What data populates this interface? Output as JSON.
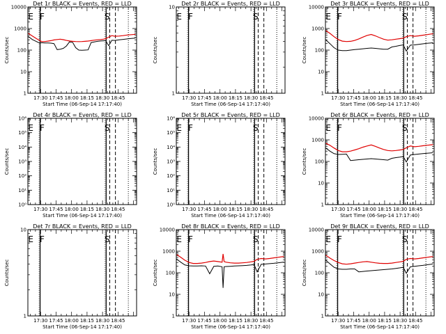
{
  "chart_data": {
    "type": "line",
    "x_ticks": [
      "17:30",
      "17:45",
      "18:00",
      "18:15",
      "18:30",
      "18:45"
    ],
    "x_tick_minutes": [
      30,
      45,
      60,
      75,
      90,
      105
    ],
    "x_range_minutes": [
      17.67,
      123.0
    ],
    "xlabel": "Start Time (06-Sep-14 17:17:40)",
    "ylabel": "Counts/sec",
    "yscale": "log",
    "series_names": [
      "Events",
      "LLD"
    ],
    "series_colors": {
      "events": "#000000",
      "lld": "#e00000"
    },
    "panels": [
      {
        "title": "Det 1r BLACK = Events, RED = LLD",
        "ylim": [
          1,
          10000
        ],
        "y_ticks": [
          "10000",
          "1000",
          "100",
          "10",
          "1"
        ],
        "y_tick_values": [
          10000,
          1000,
          100,
          10,
          1
        ],
        "solid_lines": [
          29.5,
          93.5
        ],
        "dashed_lines": [
          97.0,
          102.5
        ],
        "dotted_lines": [
          115.0
        ],
        "labels": [
          {
            "text": "E",
            "x": 20.5
          },
          {
            "text": "F",
            "x": 31.5
          },
          {
            "text": "S",
            "x": 94.5
          }
        ],
        "x": [
          18,
          22,
          26,
          29,
          31,
          34,
          37,
          40,
          43,
          46,
          49,
          52,
          55,
          58,
          61,
          64,
          67,
          70,
          73,
          76,
          79,
          82,
          85,
          88,
          91,
          93,
          96,
          99,
          102,
          106,
          110,
          114,
          118,
          122
        ],
        "lld": [
          600,
          450,
          340,
          280,
          250,
          250,
          260,
          275,
          295,
          310,
          320,
          305,
          280,
          265,
          255,
          250,
          248,
          250,
          255,
          262,
          275,
          290,
          300,
          310,
          320,
          340,
          400,
          470,
          440,
          450,
          470,
          500,
          520,
          540
        ],
        "events": [
          430,
          310,
          250,
          210,
          220,
          215,
          215,
          210,
          200,
          105,
          110,
          120,
          155,
          240,
          230,
          130,
          100,
          98,
          100,
          102,
          225,
          240,
          255,
          265,
          270,
          275,
          160,
          285,
          280,
          300,
          315,
          330,
          345,
          360
        ]
      },
      {
        "title": "Det 2r BLACK = Events, RED = LLD",
        "ylim": [
          1,
          10
        ],
        "y_ticks": [
          "10",
          "1"
        ],
        "y_tick_values": [
          10,
          1
        ],
        "solid_lines": [
          29.5,
          93.5
        ],
        "dashed_lines": [
          97.0,
          102.5
        ],
        "dotted_lines": [
          115.0
        ],
        "labels": [
          {
            "text": "E",
            "x": 20.5
          },
          {
            "text": "F",
            "x": 31.5
          },
          {
            "text": "S",
            "x": 94.5
          }
        ],
        "x": [],
        "lld": [],
        "events": []
      },
      {
        "title": "Det 3r BLACK = Events, RED = LLD",
        "ylim": [
          1,
          10000
        ],
        "y_ticks": [
          "10000",
          "1000",
          "100",
          "10",
          "1"
        ],
        "y_tick_values": [
          10000,
          1000,
          100,
          10,
          1
        ],
        "solid_lines": [
          29.5,
          93.5
        ],
        "dashed_lines": [
          97.0,
          102.5
        ],
        "dotted_lines": [
          115.0
        ],
        "labels": [
          {
            "text": "E",
            "x": 20.5
          },
          {
            "text": "F",
            "x": 31.5
          },
          {
            "text": "S",
            "x": 94.5
          }
        ],
        "x": [
          18,
          22,
          26,
          30,
          34,
          38,
          42,
          46,
          50,
          54,
          58,
          62,
          66,
          70,
          74,
          78,
          82,
          86,
          90,
          93,
          96,
          100,
          104,
          108,
          112,
          116,
          120,
          122
        ],
        "lld": [
          800,
          600,
          420,
          310,
          260,
          250,
          255,
          280,
          330,
          400,
          480,
          530,
          460,
          380,
          320,
          290,
          300,
          320,
          340,
          360,
          420,
          470,
          440,
          460,
          490,
          520,
          560,
          570
        ],
        "events": [
          300,
          200,
          130,
          100,
          95,
          95,
          100,
          105,
          110,
          115,
          120,
          125,
          120,
          115,
          110,
          110,
          140,
          150,
          165,
          175,
          90,
          170,
          175,
          185,
          195,
          205,
          215,
          220
        ]
      },
      {
        "title": "Det 4r BLACK = Events, RED = LLD",
        "ylim": [
          1,
          1000000
        ],
        "y_ticks": [
          "10⁶",
          "10⁵",
          "10⁴",
          "10³",
          "10²",
          "10¹",
          "10⁰"
        ],
        "y_tick_values": [
          1000000,
          100000,
          10000,
          1000,
          100,
          10,
          1
        ],
        "solid_lines": [
          29.5,
          93.5
        ],
        "dashed_lines": [
          97.0,
          102.5
        ],
        "dotted_lines": [
          115.0
        ],
        "labels": [
          {
            "text": "E",
            "x": 20.5
          },
          {
            "text": "F",
            "x": 31.5
          },
          {
            "text": "S",
            "x": 94.5
          }
        ],
        "x": [],
        "lld": [],
        "events": []
      },
      {
        "title": "Det 5r BLACK = Events, RED = LLD",
        "ylim": [
          1,
          1000000
        ],
        "y_ticks": [
          "10⁶",
          "10⁵",
          "10⁴",
          "10³",
          "10²",
          "10¹",
          "10⁰"
        ],
        "y_tick_values": [
          1000000,
          100000,
          10000,
          1000,
          100,
          10,
          1
        ],
        "solid_lines": [
          29.5,
          93.5
        ],
        "dashed_lines": [
          97.0,
          102.5
        ],
        "dotted_lines": [
          115.0
        ],
        "labels": [
          {
            "text": "E",
            "x": 20.5
          },
          {
            "text": "F",
            "x": 31.5
          },
          {
            "text": "S",
            "x": 94.5
          }
        ],
        "x": [],
        "lld": [],
        "events": []
      },
      {
        "title": "Det 6r BLACK = Events, RED = LLD",
        "ylim": [
          1,
          10000
        ],
        "y_ticks": [
          "10000",
          "1000",
          "100",
          "10",
          "1"
        ],
        "y_tick_values": [
          10000,
          1000,
          100,
          10,
          1
        ],
        "solid_lines": [
          29.5,
          93.5
        ],
        "dashed_lines": [
          97.0,
          102.5
        ],
        "dotted_lines": [
          115.0
        ],
        "labels": [
          {
            "text": "E",
            "x": 20.5
          },
          {
            "text": "F",
            "x": 31.5
          },
          {
            "text": "S",
            "x": 94.5
          }
        ],
        "x": [
          18,
          22,
          26,
          30,
          34,
          38,
          42,
          46,
          50,
          54,
          58,
          62,
          66,
          70,
          74,
          78,
          82,
          86,
          90,
          93,
          96,
          100,
          104,
          108,
          112,
          116,
          120,
          122
        ],
        "lld": [
          700,
          560,
          420,
          320,
          280,
          280,
          300,
          340,
          390,
          460,
          520,
          580,
          500,
          420,
          360,
          320,
          310,
          320,
          340,
          360,
          430,
          520,
          480,
          500,
          530,
          560,
          590,
          600
        ],
        "events": [
          420,
          300,
          230,
          210,
          215,
          220,
          110,
          115,
          120,
          125,
          130,
          135,
          130,
          125,
          120,
          115,
          140,
          150,
          160,
          170,
          95,
          200,
          210,
          220,
          230,
          240,
          250,
          255
        ]
      },
      {
        "title": "Det 7r BLACK = Events, RED = LLD",
        "ylim": [
          1,
          10
        ],
        "y_ticks": [
          "10",
          "1"
        ],
        "y_tick_values": [
          10,
          1
        ],
        "solid_lines": [
          29.5,
          93.5
        ],
        "dashed_lines": [
          97.0,
          102.5
        ],
        "dotted_lines": [
          115.0
        ],
        "labels": [
          {
            "text": "E",
            "x": 20.5
          },
          {
            "text": "F",
            "x": 31.5
          },
          {
            "text": "S",
            "x": 94.5
          }
        ],
        "x": [],
        "lld": [],
        "events": []
      },
      {
        "title": "Det 8r BLACK = Events, RED = LLD",
        "ylim": [
          1,
          10000
        ],
        "y_ticks": [
          "10000",
          "1000",
          "100",
          "10",
          "1"
        ],
        "y_tick_values": [
          10000,
          1000,
          100,
          10,
          1
        ],
        "solid_lines": [
          29.5,
          93.5
        ],
        "dashed_lines": [
          97.0,
          102.5
        ],
        "dotted_lines": [
          115.0
        ],
        "labels": [
          {
            "text": "E",
            "x": 20.5
          },
          {
            "text": "F",
            "x": 31.5
          },
          {
            "text": "S",
            "x": 94.5
          }
        ],
        "x": [
          18,
          22,
          26,
          30,
          34,
          38,
          42,
          46,
          50,
          54,
          58,
          62,
          63,
          64,
          66,
          70,
          74,
          78,
          82,
          86,
          90,
          93,
          96,
          100,
          104,
          108,
          112,
          116,
          120,
          122
        ],
        "lld": [
          700,
          520,
          380,
          300,
          270,
          270,
          280,
          300,
          330,
          350,
          330,
          310,
          750,
          330,
          310,
          290,
          280,
          280,
          290,
          300,
          320,
          340,
          420,
          460,
          440,
          460,
          490,
          520,
          550,
          560
        ],
        "events": [
          430,
          310,
          230,
          210,
          205,
          205,
          210,
          205,
          90,
          200,
          205,
          190,
          20,
          190,
          195,
          200,
          205,
          210,
          215,
          220,
          230,
          240,
          110,
          250,
          255,
          265,
          275,
          290,
          305,
          315
        ]
      },
      {
        "title": "Det 9r BLACK = Events, RED = LLD",
        "ylim": [
          1,
          10000
        ],
        "y_ticks": [
          "10000",
          "1000",
          "100",
          "10",
          "1"
        ],
        "y_tick_values": [
          10000,
          1000,
          100,
          10,
          1
        ],
        "solid_lines": [
          29.5,
          93.5
        ],
        "dashed_lines": [
          97.0,
          102.5
        ],
        "dotted_lines": [
          115.0
        ],
        "labels": [
          {
            "text": "E",
            "x": 20.5
          },
          {
            "text": "F",
            "x": 31.5
          },
          {
            "text": "S",
            "x": 94.5
          }
        ],
        "x": [
          18,
          22,
          26,
          30,
          34,
          38,
          42,
          46,
          50,
          54,
          58,
          62,
          66,
          70,
          74,
          78,
          82,
          86,
          90,
          93,
          96,
          100,
          104,
          108,
          112,
          116,
          120,
          122
        ],
        "lld": [
          650,
          480,
          370,
          300,
          260,
          250,
          260,
          280,
          300,
          320,
          330,
          310,
          290,
          275,
          270,
          270,
          280,
          300,
          320,
          340,
          420,
          460,
          440,
          460,
          490,
          520,
          550,
          560
        ],
        "events": [
          380,
          260,
          180,
          150,
          145,
          145,
          150,
          150,
          110,
          115,
          120,
          125,
          130,
          135,
          140,
          145,
          150,
          160,
          170,
          180,
          95,
          190,
          200,
          210,
          220,
          235,
          250,
          260
        ]
      }
    ]
  }
}
